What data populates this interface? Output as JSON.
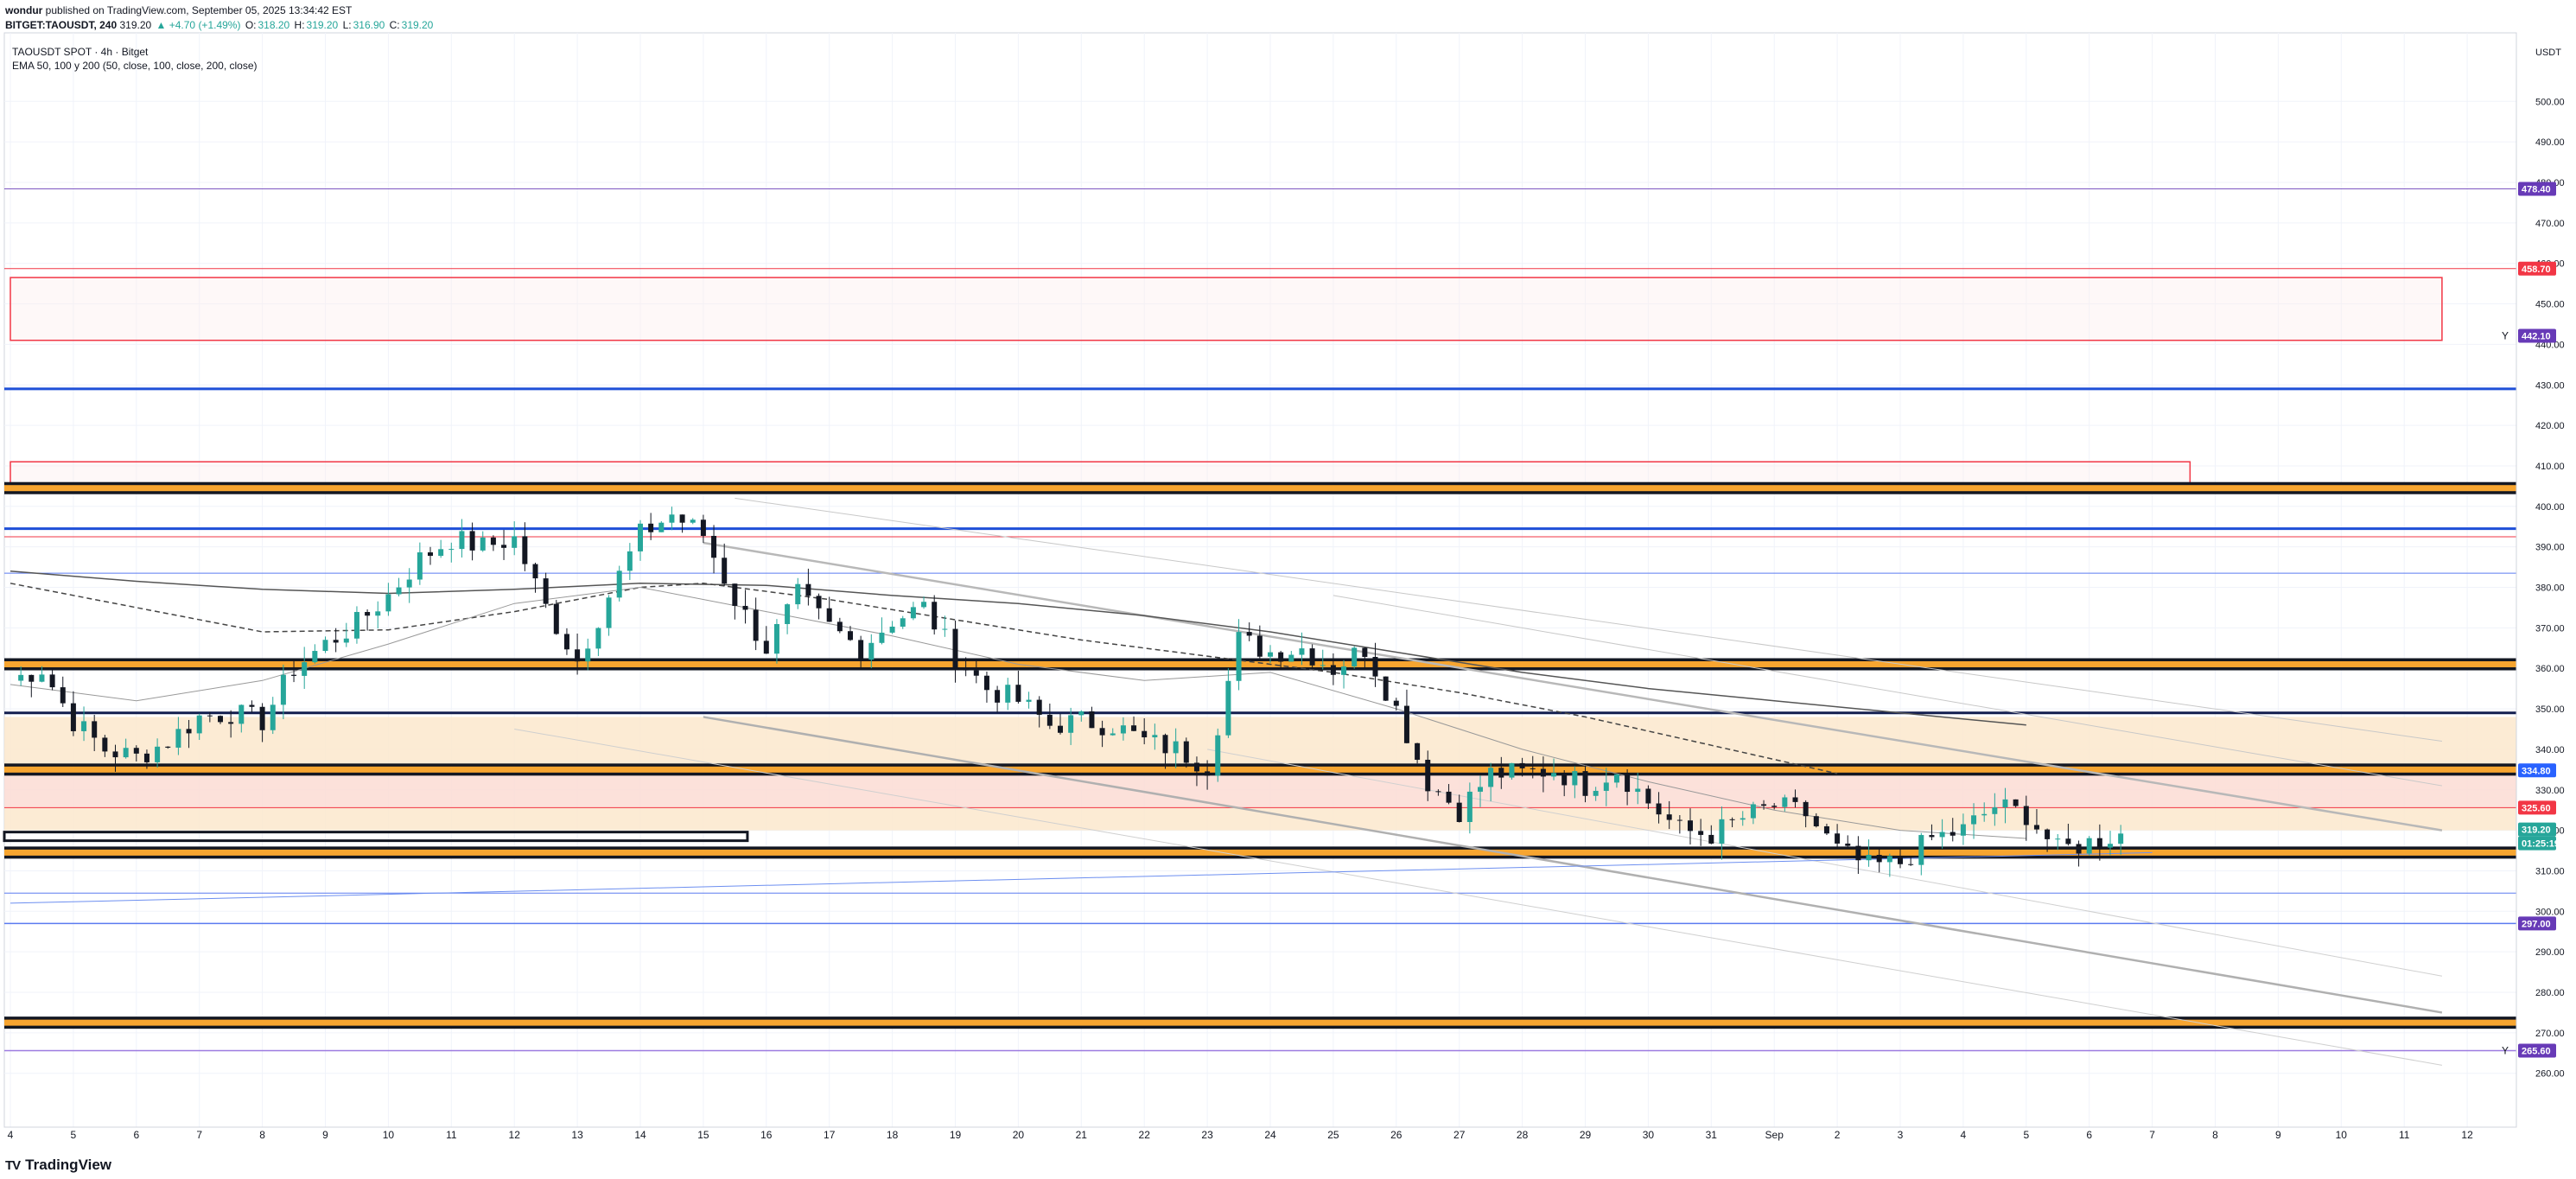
{
  "header": {
    "publisher": "wondur",
    "published_text": "published on TradingView.com, September 05, 2025 13:34:42 EST",
    "symbol_line_prefix": "BITGET:TAOUSDT, 240",
    "last": "319.20",
    "change": "▲ +4.70 (+1.49%)",
    "o_label": "O:",
    "o": "318.20",
    "h_label": "H:",
    "h": "319.20",
    "l_label": "L:",
    "l": "316.90",
    "c_label": "C:",
    "c": "319.20"
  },
  "legend": {
    "title": "TAOUSDT SPOT · 4h · Bitget",
    "indicator": "EMA 50, 100 y 200 (50, close, 100, close, 200, close)"
  },
  "footer": {
    "brand": "TradingView",
    "logo": "TV"
  },
  "chart_data": {
    "type": "candlestick",
    "title": "TAOUSDT SPOT · 4h · Bitget",
    "currency": "USDT",
    "ylim": [
      255,
      525
    ],
    "y_ticks": [
      260,
      270,
      280,
      290,
      300,
      310,
      320,
      330,
      340,
      350,
      360,
      370,
      380,
      390,
      400,
      410,
      420,
      430,
      440,
      450,
      460,
      470,
      480,
      490,
      500
    ],
    "x_labels": [
      "4",
      "5",
      "6",
      "7",
      "8",
      "9",
      "10",
      "11",
      "12",
      "13",
      "14",
      "15",
      "16",
      "17",
      "18",
      "19",
      "20",
      "21",
      "22",
      "23",
      "24",
      "25",
      "26",
      "27",
      "28",
      "29",
      "30",
      "31",
      "Sep",
      "2",
      "3",
      "4",
      "5",
      "6",
      "7",
      "8",
      "9",
      "10",
      "11",
      "12"
    ],
    "price_labels": [
      {
        "value": "478.40",
        "color": "#673ab7"
      },
      {
        "value": "458.70",
        "color": "#f23645"
      },
      {
        "value": "442.10",
        "color": "#673ab7"
      },
      {
        "value": "334.80",
        "color": "#2962ff"
      },
      {
        "value": "325.60",
        "color": "#f23645"
      },
      {
        "value": "319.20",
        "color": "#26a69a"
      },
      {
        "value": "01:25:19",
        "color": "#26a69a"
      },
      {
        "value": "297.00",
        "color": "#673ab7"
      },
      {
        "value": "265.60",
        "color": "#673ab7"
      }
    ],
    "y_markers": [
      "Y",
      "Y"
    ],
    "horizontal_levels": [
      {
        "price": 478.4,
        "color": "#7e57c2",
        "width": 1,
        "style": "solid"
      },
      {
        "price": 458.7,
        "color": "#f23645",
        "width": 1,
        "style": "solid"
      },
      {
        "price": 429,
        "color": "#1e4fd8",
        "width": 3,
        "style": "solid"
      },
      {
        "price": 394.5,
        "color": "#1e4fd8",
        "width": 3,
        "style": "solid"
      },
      {
        "price": 392.5,
        "color": "#f23645",
        "width": 1,
        "style": "solid"
      },
      {
        "price": 383.5,
        "color": "#5b7bf0",
        "width": 1,
        "style": "solid"
      },
      {
        "price": 349,
        "color": "#131e4f",
        "width": 3,
        "style": "solid"
      },
      {
        "price": 325.6,
        "color": "#f23645",
        "width": 1,
        "style": "solid"
      },
      {
        "price": 304.5,
        "color": "#5b7bf0",
        "width": 1,
        "style": "solid"
      },
      {
        "price": 297,
        "color": "#5b7bf0",
        "width": 1.5,
        "style": "solid"
      },
      {
        "price": 265.6,
        "color": "#9c7be0",
        "width": 1.5,
        "style": "solid"
      }
    ],
    "orange_bands": [
      404.5,
      361,
      335,
      314.5,
      272.5
    ],
    "black_band_short": {
      "price": 318.5,
      "x_end_day": 14.7
    },
    "zones": [
      {
        "type": "box",
        "top": 456.5,
        "bottom": 441,
        "from_day": 3.0,
        "to_day": 41.6,
        "color": "#f23645"
      },
      {
        "type": "box",
        "top": 411,
        "bottom": 405,
        "from_day": 3.0,
        "to_day": 37.6,
        "color": "#f23645"
      },
      {
        "type": "shade",
        "top": 348,
        "bottom": 335.5,
        "color": "#fbe7cc"
      },
      {
        "type": "shade",
        "top": 334,
        "bottom": 325.6,
        "color": "#fcdcd4"
      },
      {
        "type": "shade",
        "top": 325.6,
        "bottom": 320,
        "color": "#fbe7cc"
      }
    ],
    "ema": {
      "ema200": [
        [
          3,
          384
        ],
        [
          5,
          381.5
        ],
        [
          7,
          379.5
        ],
        [
          9,
          378.5
        ],
        [
          11,
          379.5
        ],
        [
          13,
          381
        ],
        [
          15,
          380.5
        ],
        [
          17,
          378
        ],
        [
          19,
          376
        ],
        [
          21,
          373
        ],
        [
          23,
          369
        ],
        [
          25,
          364
        ],
        [
          27,
          359
        ],
        [
          29,
          355
        ],
        [
          31,
          352
        ],
        [
          33,
          349
        ],
        [
          35,
          346
        ]
      ],
      "ema100": [
        [
          3,
          381
        ],
        [
          5,
          375
        ],
        [
          7,
          369
        ],
        [
          9,
          369.5
        ],
        [
          11,
          374
        ],
        [
          13,
          380
        ],
        [
          14,
          381
        ],
        [
          16,
          377
        ],
        [
          18,
          372
        ],
        [
          20,
          367
        ],
        [
          22,
          363
        ],
        [
          24,
          359
        ],
        [
          26,
          354
        ],
        [
          28,
          348
        ],
        [
          30,
          341
        ],
        [
          32,
          334
        ]
      ],
      "ema50": [
        [
          3,
          356
        ],
        [
          5,
          352
        ],
        [
          7,
          357
        ],
        [
          9,
          366
        ],
        [
          11,
          376
        ],
        [
          13,
          380
        ],
        [
          15,
          374
        ],
        [
          17,
          368
        ],
        [
          19,
          361
        ],
        [
          21,
          357
        ],
        [
          23,
          359
        ],
        [
          25,
          350
        ],
        [
          27,
          340
        ],
        [
          29,
          332
        ],
        [
          31,
          325
        ],
        [
          33,
          320
        ],
        [
          35,
          318
        ]
      ]
    },
    "trendlines": [
      {
        "from": [
          14,
          348
        ],
        "to": [
          41.6,
          275
        ],
        "color": "#b0b0b0",
        "width": 2.5
      },
      {
        "from": [
          14,
          391
        ],
        "to": [
          41.6,
          320
        ],
        "color": "#b8b8b8",
        "width": 2.5
      },
      {
        "from": [
          14.5,
          402
        ],
        "to": [
          41.6,
          342
        ],
        "color": "#c8c8c8",
        "width": 1
      },
      {
        "from": [
          24,
          378
        ],
        "to": [
          41.6,
          331
        ],
        "color": "#c8c8c8",
        "width": 1
      },
      {
        "from": [
          11,
          345
        ],
        "to": [
          41.6,
          262
        ],
        "color": "#cfcfcf",
        "width": 1
      },
      {
        "from": [
          22,
          340
        ],
        "to": [
          41.6,
          284
        ],
        "color": "#d0d0d0",
        "width": 1
      },
      {
        "from": [
          3,
          302
        ],
        "to": [
          37,
          314.5
        ],
        "color": "#6d8ff0",
        "width": 1
      }
    ],
    "candles_anchor": [
      [
        3.0,
        357
      ],
      [
        3.5,
        360
      ],
      [
        4.0,
        347
      ],
      [
        4.5,
        340
      ],
      [
        5.0,
        338
      ],
      [
        5.5,
        342
      ],
      [
        6.0,
        348
      ],
      [
        6.5,
        349
      ],
      [
        7.0,
        347
      ],
      [
        7.5,
        360
      ],
      [
        8.0,
        366
      ],
      [
        8.5,
        371
      ],
      [
        9.0,
        378
      ],
      [
        9.5,
        387
      ],
      [
        10.0,
        392
      ],
      [
        10.5,
        390
      ],
      [
        11.0,
        392
      ],
      [
        11.5,
        375
      ],
      [
        12.0,
        362
      ],
      [
        12.5,
        378
      ],
      [
        13.0,
        393
      ],
      [
        13.5,
        398
      ],
      [
        14.0,
        393
      ],
      [
        14.5,
        377
      ],
      [
        15.0,
        365
      ],
      [
        15.5,
        378
      ],
      [
        16.0,
        370
      ],
      [
        16.5,
        365
      ],
      [
        17.0,
        372
      ],
      [
        17.5,
        375
      ],
      [
        18.0,
        363
      ],
      [
        18.5,
        355
      ],
      [
        19.0,
        352
      ],
      [
        19.5,
        346
      ],
      [
        20.0,
        347
      ],
      [
        20.5,
        346
      ],
      [
        21.0,
        342
      ],
      [
        21.5,
        340
      ],
      [
        22.0,
        336
      ],
      [
        22.5,
        367
      ],
      [
        23.0,
        364
      ],
      [
        23.5,
        365
      ],
      [
        24.0,
        360
      ],
      [
        24.5,
        365
      ],
      [
        25.0,
        350
      ],
      [
        25.5,
        332
      ],
      [
        26.0,
        325
      ],
      [
        26.5,
        334
      ],
      [
        27.0,
        334
      ],
      [
        27.5,
        335
      ],
      [
        28.0,
        331
      ],
      [
        28.5,
        335
      ],
      [
        29.0,
        327
      ],
      [
        29.5,
        320
      ],
      [
        30.0,
        319
      ],
      [
        30.5,
        323
      ],
      [
        31.0,
        326
      ],
      [
        31.5,
        324
      ],
      [
        32.0,
        315
      ],
      [
        32.5,
        311
      ],
      [
        33.0,
        312
      ],
      [
        33.5,
        318
      ],
      [
        34.0,
        320
      ],
      [
        34.5,
        326
      ],
      [
        35.0,
        324
      ],
      [
        35.5,
        315
      ],
      [
        36.0,
        317
      ],
      [
        36.5,
        319.2
      ]
    ]
  }
}
